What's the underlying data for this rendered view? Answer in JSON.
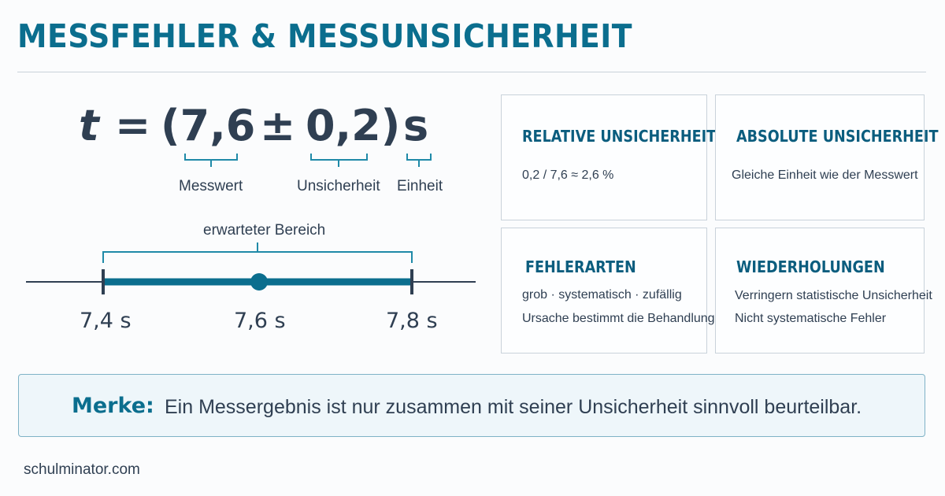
{
  "title": "MESSFEHLER & MESSUNSICHERHEIT",
  "formula": {
    "symbol": "t",
    "equals": "=",
    "value_part": "(7,6",
    "plus_minus": "±",
    "uncertainty_part": "0,2)",
    "unit": "s"
  },
  "brace_labels": {
    "measured_value": "Messwert",
    "uncertainty": "Unsicherheit",
    "unit": "Einheit"
  },
  "number_line": {
    "range_label": "erwarteter Bereich",
    "lower": "7,4 s",
    "center": "7,6 s",
    "upper": "7,8 s",
    "accent_color": "#0b6e8e"
  },
  "cards": [
    {
      "title": "RELATIVE UNSICHERHEIT",
      "lines": [
        "0,2 / 7,6 ≈ 2,6 %"
      ]
    },
    {
      "title": "ABSOLUTE UNSICHERHEIT",
      "lines": [
        "Gleiche Einheit wie der Messwert"
      ]
    },
    {
      "title": "FEHLERARTEN",
      "lines": [
        "grob · systematisch · zufällig",
        "Ursache bestimmt die Behandlung"
      ]
    },
    {
      "title": "WIEDERHOLUNGEN",
      "lines": [
        "Verringern statistische Unsicherheit",
        "Nicht systematische Fehler"
      ]
    }
  ],
  "note": {
    "label": "Merke:",
    "text": "Ein Messergebnis ist nur zusammen mit seiner Unsicherheit sinnvoll beurteilbar."
  },
  "footer": "schulminator.com"
}
